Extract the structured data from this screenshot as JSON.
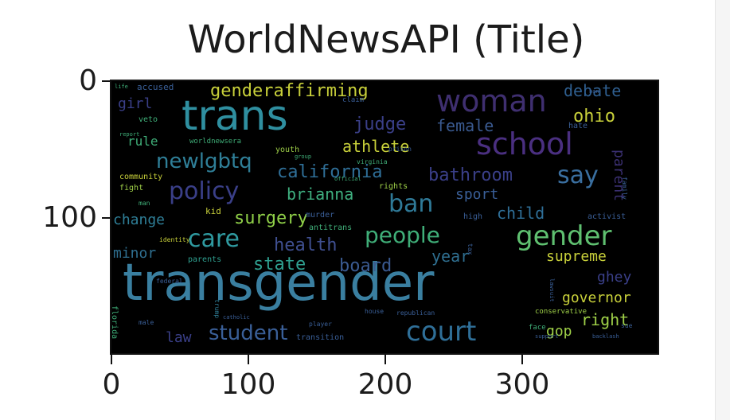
{
  "chart_data": {
    "type": "wordcloud",
    "title": "WorldNewsAPI (Title)",
    "xlabel": "",
    "ylabel": "",
    "xlim": [
      0,
      400
    ],
    "ylim": [
      200,
      0
    ],
    "x_ticks": [
      "0",
      "100",
      "200",
      "300"
    ],
    "y_ticks": [
      "0",
      "100"
    ],
    "background": "#000000",
    "words": [
      {
        "text": "transgender",
        "size": 64,
        "color": "#3a7fa0"
      },
      {
        "text": "trans",
        "size": 52,
        "color": "#2f8fa0"
      },
      {
        "text": "school",
        "size": 38,
        "color": "#4a2f80"
      },
      {
        "text": "woman",
        "size": 38,
        "color": "#3f2f70"
      },
      {
        "text": "gender",
        "size": 34,
        "color": "#5fc070"
      },
      {
        "text": "court",
        "size": 34,
        "color": "#2f6f98"
      },
      {
        "text": "people",
        "size": 28,
        "color": "#3fae78"
      },
      {
        "text": "care",
        "size": 30,
        "color": "#2f9aa0"
      },
      {
        "text": "policy",
        "size": 30,
        "color": "#3a3f88"
      },
      {
        "text": "ban",
        "size": 30,
        "color": "#2f7a98"
      },
      {
        "text": "say",
        "size": 30,
        "color": "#3a6fa0"
      },
      {
        "text": "newlgbtq",
        "size": 26,
        "color": "#2f7f98"
      },
      {
        "text": "genderaffirming",
        "size": 22,
        "color": "#c8d03a"
      },
      {
        "text": "student",
        "size": 26,
        "color": "#3a5f98"
      },
      {
        "text": "health",
        "size": 22,
        "color": "#3f4f90"
      },
      {
        "text": "state",
        "size": 22,
        "color": "#2fa090"
      },
      {
        "text": "board",
        "size": 22,
        "color": "#3a5a90"
      },
      {
        "text": "surgery",
        "size": 22,
        "color": "#8fcf48"
      },
      {
        "text": "brianna",
        "size": 20,
        "color": "#3fb080"
      },
      {
        "text": "california",
        "size": 22,
        "color": "#2f6f98"
      },
      {
        "text": "athlete",
        "size": 20,
        "color": "#c8d03a"
      },
      {
        "text": "judge",
        "size": 22,
        "color": "#3a3f88"
      },
      {
        "text": "female",
        "size": 20,
        "color": "#3a5a90"
      },
      {
        "text": "ohio",
        "size": 22,
        "color": "#c8d03a"
      },
      {
        "text": "debate",
        "size": 20,
        "color": "#2f5f90"
      },
      {
        "text": "bathroom",
        "size": 22,
        "color": "#3a3f88"
      },
      {
        "text": "sport",
        "size": 18,
        "color": "#3a5f98"
      },
      {
        "text": "child",
        "size": 20,
        "color": "#2f6f98"
      },
      {
        "text": "supreme",
        "size": 18,
        "color": "#c8d03a"
      },
      {
        "text": "year",
        "size": 20,
        "color": "#2f6f90"
      },
      {
        "text": "ghey",
        "size": 18,
        "color": "#3a3f88"
      },
      {
        "text": "governor",
        "size": 18,
        "color": "#c8d03a"
      },
      {
        "text": "right",
        "size": 20,
        "color": "#9fd048"
      },
      {
        "text": "gop",
        "size": 18,
        "color": "#9fd048"
      },
      {
        "text": "law",
        "size": 18,
        "color": "#3a3f88"
      },
      {
        "text": "parent",
        "size": 18,
        "color": "#3a2f70"
      },
      {
        "text": "change",
        "size": 18,
        "color": "#2f7f98"
      },
      {
        "text": "minor",
        "size": 18,
        "color": "#2f6f90"
      },
      {
        "text": "rule",
        "size": 16,
        "color": "#3fae78"
      },
      {
        "text": "girl",
        "size": 18,
        "color": "#3a3f88"
      },
      {
        "text": "accused",
        "size": 11,
        "color": "#3a5f98"
      },
      {
        "text": "veto",
        "size": 10,
        "color": "#3fae78"
      },
      {
        "text": "worldnewsera",
        "size": 9,
        "color": "#3fae78"
      },
      {
        "text": "youth",
        "size": 10,
        "color": "#9fd048"
      },
      {
        "text": "community",
        "size": 10,
        "color": "#c8d03a"
      },
      {
        "text": "fight",
        "size": 10,
        "color": "#9fd048"
      },
      {
        "text": "kid",
        "size": 11,
        "color": "#c8d03a"
      },
      {
        "text": "parents",
        "size": 10,
        "color": "#2fa090"
      },
      {
        "text": "identity",
        "size": 8,
        "color": "#c8d03a"
      },
      {
        "text": "murder",
        "size": 10,
        "color": "#3a5f98"
      },
      {
        "text": "antitrans",
        "size": 10,
        "color": "#3fae78"
      },
      {
        "text": "rights",
        "size": 10,
        "color": "#9fd048"
      },
      {
        "text": "high",
        "size": 10,
        "color": "#3a5f98"
      },
      {
        "text": "activist",
        "size": 10,
        "color": "#3a5f98"
      },
      {
        "text": "hate",
        "size": 10,
        "color": "#3a5f98"
      },
      {
        "text": "family",
        "size": 8,
        "color": "#3a5f98"
      },
      {
        "text": "claim",
        "size": 9,
        "color": "#3a5f98"
      },
      {
        "text": "prison",
        "size": 8,
        "color": "#3a5f98"
      },
      {
        "text": "virginia",
        "size": 8,
        "color": "#3fae78"
      },
      {
        "text": "florida",
        "size": 10,
        "color": "#3fae78"
      },
      {
        "text": "trump",
        "size": 8,
        "color": "#2f7f98"
      },
      {
        "text": "transition",
        "size": 10,
        "color": "#3a5f98"
      },
      {
        "text": "conservative",
        "size": 9,
        "color": "#9fd048"
      },
      {
        "text": "face",
        "size": 9,
        "color": "#3fae78"
      },
      {
        "text": "house",
        "size": 8,
        "color": "#3a5f98"
      },
      {
        "text": "republican",
        "size": 8,
        "color": "#3a5f98"
      },
      {
        "text": "federal",
        "size": 8,
        "color": "#3a5f98"
      },
      {
        "text": "male",
        "size": 8,
        "color": "#3a5f98"
      },
      {
        "text": "player",
        "size": 8,
        "color": "#3a5f98"
      },
      {
        "text": "catholic",
        "size": 7,
        "color": "#3a5f98"
      },
      {
        "text": "support",
        "size": 7,
        "color": "#3a5f98"
      },
      {
        "text": "backlash",
        "size": 7,
        "color": "#3a5f98"
      },
      {
        "text": "sue",
        "size": 8,
        "color": "#3a5f98"
      },
      {
        "text": "tax",
        "size": 8,
        "color": "#3a5f98"
      },
      {
        "text": "man",
        "size": 8,
        "color": "#3fae78"
      },
      {
        "text": "report",
        "size": 7,
        "color": "#3fae78"
      },
      {
        "text": "group",
        "size": 7,
        "color": "#3fae78"
      },
      {
        "text": "official",
        "size": 7,
        "color": "#3fae78"
      },
      {
        "text": "life",
        "size": 7,
        "color": "#3fae78"
      },
      {
        "text": "lawsuit",
        "size": 7,
        "color": "#3a5f98"
      },
      {
        "text": "ban",
        "size": 7,
        "color": "#3a5f98"
      }
    ]
  }
}
